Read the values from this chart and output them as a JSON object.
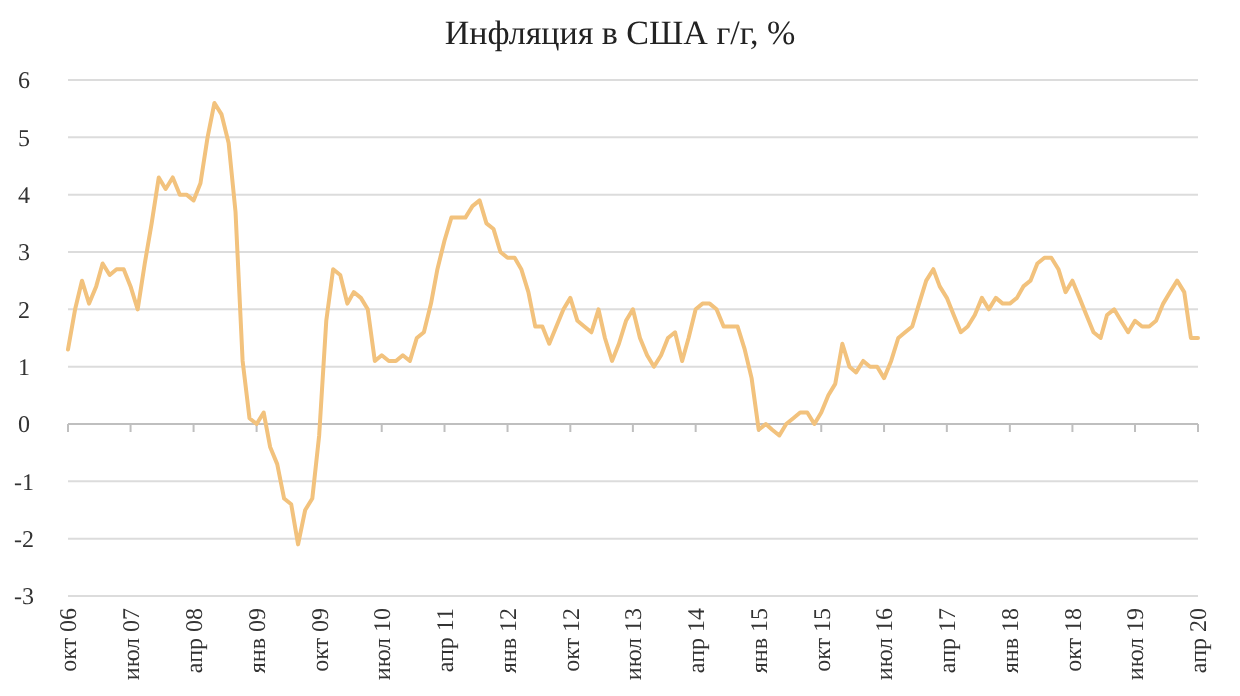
{
  "chart_data": {
    "type": "line",
    "title": "Инфляция в США г/г, %",
    "x": [
      "2006-10",
      "2006-11",
      "2006-12",
      "2007-01",
      "2007-02",
      "2007-03",
      "2007-04",
      "2007-05",
      "2007-06",
      "2007-07",
      "2007-08",
      "2007-09",
      "2007-10",
      "2007-11",
      "2007-12",
      "2008-01",
      "2008-02",
      "2008-03",
      "2008-04",
      "2008-05",
      "2008-06",
      "2008-07",
      "2008-08",
      "2008-09",
      "2008-10",
      "2008-11",
      "2008-12",
      "2009-01",
      "2009-02",
      "2009-03",
      "2009-04",
      "2009-05",
      "2009-06",
      "2009-07",
      "2009-08",
      "2009-09",
      "2009-10",
      "2009-11",
      "2009-12",
      "2010-01",
      "2010-02",
      "2010-03",
      "2010-04",
      "2010-05",
      "2010-06",
      "2010-07",
      "2010-08",
      "2010-09",
      "2010-10",
      "2010-11",
      "2010-12",
      "2011-01",
      "2011-02",
      "2011-03",
      "2011-04",
      "2011-05",
      "2011-06",
      "2011-07",
      "2011-08",
      "2011-09",
      "2011-10",
      "2011-11",
      "2011-12",
      "2012-01",
      "2012-02",
      "2012-03",
      "2012-04",
      "2012-05",
      "2012-06",
      "2012-07",
      "2012-08",
      "2012-09",
      "2012-10",
      "2012-11",
      "2012-12",
      "2013-01",
      "2013-02",
      "2013-03",
      "2013-04",
      "2013-05",
      "2013-06",
      "2013-07",
      "2013-08",
      "2013-09",
      "2013-10",
      "2013-11",
      "2013-12",
      "2014-01",
      "2014-02",
      "2014-03",
      "2014-04",
      "2014-05",
      "2014-06",
      "2014-07",
      "2014-08",
      "2014-09",
      "2014-10",
      "2014-11",
      "2014-12",
      "2015-01",
      "2015-02",
      "2015-03",
      "2015-04",
      "2015-05",
      "2015-06",
      "2015-07",
      "2015-08",
      "2015-09",
      "2015-10",
      "2015-11",
      "2015-12",
      "2016-01",
      "2016-02",
      "2016-03",
      "2016-04",
      "2016-05",
      "2016-06",
      "2016-07",
      "2016-08",
      "2016-09",
      "2016-10",
      "2016-11",
      "2016-12",
      "2017-01",
      "2017-02",
      "2017-03",
      "2017-04",
      "2017-05",
      "2017-06",
      "2017-07",
      "2017-08",
      "2017-09",
      "2017-10",
      "2017-11",
      "2017-12",
      "2018-01",
      "2018-02",
      "2018-03",
      "2018-04",
      "2018-05",
      "2018-06",
      "2018-07",
      "2018-08",
      "2018-09",
      "2018-10",
      "2018-11",
      "2018-12",
      "2019-01",
      "2019-02",
      "2019-03",
      "2019-04",
      "2019-05",
      "2019-06",
      "2019-07",
      "2019-08",
      "2019-09",
      "2019-10",
      "2019-11",
      "2019-12",
      "2020-01",
      "2020-02",
      "2020-03",
      "2020-04"
    ],
    "series": [
      {
        "color": "#f2c27d",
        "values": [
          1.3,
          2.0,
          2.5,
          2.1,
          2.4,
          2.8,
          2.6,
          2.7,
          2.7,
          2.4,
          2.0,
          2.8,
          3.5,
          4.3,
          4.1,
          4.3,
          4.0,
          4.0,
          3.9,
          4.2,
          5.0,
          5.6,
          5.4,
          4.9,
          3.7,
          1.1,
          0.1,
          0.0,
          0.2,
          -0.4,
          -0.7,
          -1.3,
          -1.4,
          -2.1,
          -1.5,
          -1.3,
          -0.2,
          1.8,
          2.7,
          2.6,
          2.1,
          2.3,
          2.2,
          2.0,
          1.1,
          1.2,
          1.1,
          1.1,
          1.2,
          1.1,
          1.5,
          1.6,
          2.1,
          2.7,
          3.2,
          3.6,
          3.6,
          3.6,
          3.8,
          3.9,
          3.5,
          3.4,
          3.0,
          2.9,
          2.9,
          2.7,
          2.3,
          1.7,
          1.7,
          1.4,
          1.7,
          2.0,
          2.2,
          1.8,
          1.7,
          1.6,
          2.0,
          1.5,
          1.1,
          1.4,
          1.8,
          2.0,
          1.5,
          1.2,
          1.0,
          1.2,
          1.5,
          1.6,
          1.1,
          1.5,
          2.0,
          2.1,
          2.1,
          2.0,
          1.7,
          1.7,
          1.7,
          1.3,
          0.8,
          -0.1,
          0.0,
          -0.1,
          -0.2,
          0.0,
          0.1,
          0.2,
          0.2,
          0.0,
          0.2,
          0.5,
          0.7,
          1.4,
          1.0,
          0.9,
          1.1,
          1.0,
          1.0,
          0.8,
          1.1,
          1.5,
          1.6,
          1.7,
          2.1,
          2.5,
          2.7,
          2.4,
          2.2,
          1.9,
          1.6,
          1.7,
          1.9,
          2.2,
          2.0,
          2.2,
          2.1,
          2.1,
          2.2,
          2.4,
          2.5,
          2.8,
          2.9,
          2.9,
          2.7,
          2.3,
          2.5,
          2.2,
          1.9,
          1.6,
          1.5,
          1.9,
          2.0,
          1.8,
          1.6,
          1.8,
          1.7,
          1.7,
          1.8,
          2.1,
          2.3,
          2.5,
          2.3,
          1.5,
          1.5
        ]
      }
    ],
    "xlim": [
      "2006-10",
      "2020-04"
    ],
    "xticks": [
      {
        "value": "2006-10",
        "label": "окт 06"
      },
      {
        "value": "2007-07",
        "label": "июл 07"
      },
      {
        "value": "2008-04",
        "label": "апр 08"
      },
      {
        "value": "2009-01",
        "label": "янв 09"
      },
      {
        "value": "2009-10",
        "label": "окт 09"
      },
      {
        "value": "2010-07",
        "label": "июл 10"
      },
      {
        "value": "2011-04",
        "label": "апр 11"
      },
      {
        "value": "2012-01",
        "label": "янв 12"
      },
      {
        "value": "2012-10",
        "label": "окт 12"
      },
      {
        "value": "2013-07",
        "label": "июл 13"
      },
      {
        "value": "2014-04",
        "label": "апр 14"
      },
      {
        "value": "2015-01",
        "label": "янв 15"
      },
      {
        "value": "2015-10",
        "label": "окт 15"
      },
      {
        "value": "2016-07",
        "label": "июл 16"
      },
      {
        "value": "2017-04",
        "label": "апр 17"
      },
      {
        "value": "2018-01",
        "label": "янв 18"
      },
      {
        "value": "2018-10",
        "label": "окт 18"
      },
      {
        "value": "2019-07",
        "label": "июл 19"
      },
      {
        "value": "2020-04",
        "label": "апр 20"
      }
    ],
    "ylim": [
      -3,
      6
    ],
    "yticks": [
      -3,
      -2,
      -1,
      0,
      1,
      2,
      3,
      4,
      5,
      6
    ],
    "grid": "y",
    "marker": "none",
    "line_style": "solid"
  }
}
